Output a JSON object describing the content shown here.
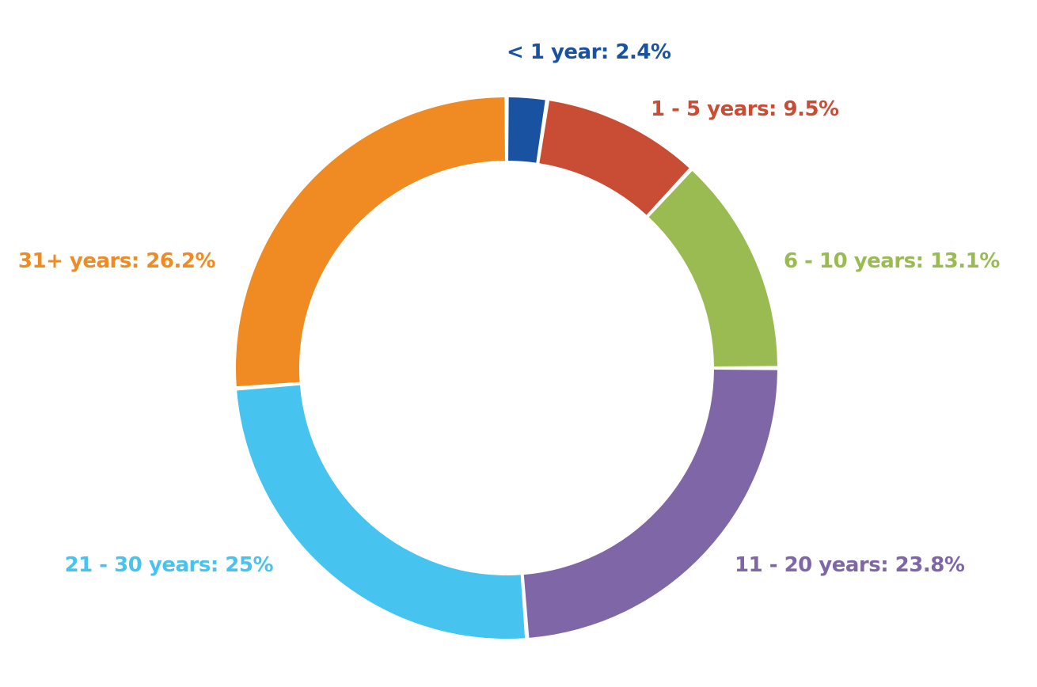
{
  "chart_data": {
    "type": "pie",
    "variant": "donut",
    "title": "",
    "legend": "none",
    "categories": [
      "< 1 year",
      "1 - 5 years",
      "6 - 10 years",
      "11 - 20 years",
      "21 - 30 years",
      "31+ years"
    ],
    "values": [
      2.4,
      9.5,
      13.1,
      23.8,
      25,
      26.2
    ],
    "unit": "%",
    "labels": [
      "< 1 year: 2.4%",
      "1 - 5 years: 9.5%",
      "6 - 10 years: 13.1%",
      "11 - 20 years: 23.8%",
      "21 - 30 years: 25%",
      "31+ years: 26.2%"
    ],
    "colors": [
      "#1a52a2",
      "#c94d34",
      "#99bb52",
      "#7f66a6",
      "#47c3ef",
      "#f08a22"
    ]
  }
}
